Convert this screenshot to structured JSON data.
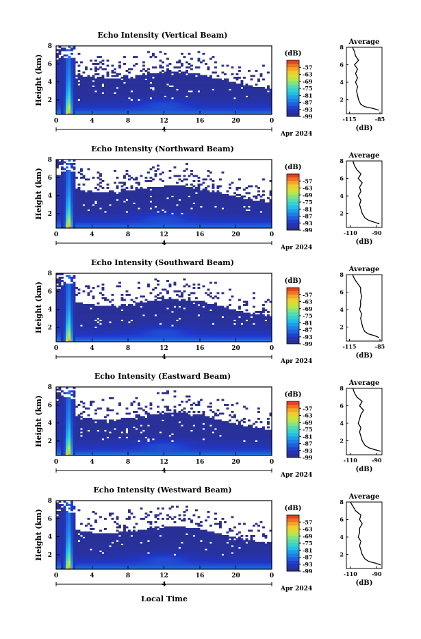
{
  "figure": {
    "date_label": "Apr 2024",
    "day_label": "4",
    "xlabel": "Local Time",
    "colorbar_unit": "(dB)",
    "profile_title": "Average",
    "profile_xlabel": "(dB)"
  },
  "chart_data": [
    {
      "type": "heatmap",
      "title": "Echo Intensity (Vertical Beam)",
      "xlabel": "Local Time",
      "ylabel": "Height (km)",
      "x_ticks": [
        "0",
        "4",
        "8",
        "12",
        "16",
        "20",
        "0"
      ],
      "xlim": [
        0,
        24
      ],
      "y_ticks": [
        "2",
        "4",
        "6",
        "8"
      ],
      "ylim": [
        0.4,
        8
      ],
      "colorbar": {
        "unit": "(dB)",
        "ticks": [
          "-57",
          "-63",
          "-69",
          "-75",
          "-81",
          "-87",
          "-93",
          "-99"
        ],
        "range": [
          -99,
          -51
        ]
      },
      "profile": {
        "title": "Average",
        "xlabel": "(dB)",
        "x_ticks": [
          "-115",
          "-85"
        ],
        "xlim": [
          -118,
          -83
        ],
        "heights": [
          0.8,
          1.0,
          1.2,
          1.5,
          2.0,
          2.5,
          3.0,
          3.5,
          4.0,
          4.5,
          5.0,
          5.5,
          6.0,
          6.5,
          7.0,
          7.5,
          8.0
        ],
        "values": [
          -86,
          -92,
          -100,
          -104,
          -106,
          -107,
          -108,
          -107,
          -109,
          -107,
          -109,
          -107,
          -110,
          -106,
          -109,
          -110,
          -112
        ]
      }
    },
    {
      "type": "heatmap",
      "title": "Echo Intensity (Northward Beam)",
      "xlabel": "Local Time",
      "ylabel": "Height (km)",
      "x_ticks": [
        "0",
        "4",
        "8",
        "12",
        "16",
        "20",
        "0"
      ],
      "xlim": [
        0,
        24
      ],
      "y_ticks": [
        "2",
        "4",
        "6",
        "8"
      ],
      "ylim": [
        0.4,
        8
      ],
      "colorbar": {
        "unit": "(dB)",
        "ticks": [
          "-57",
          "-63",
          "-69",
          "-75",
          "-81",
          "-87",
          "-93",
          "-99"
        ],
        "range": [
          -99,
          -51
        ]
      },
      "profile": {
        "title": "Average",
        "xlabel": "(dB)",
        "x_ticks": [
          "-110",
          "-90"
        ],
        "xlim": [
          -113,
          -86
        ],
        "heights": [
          0.8,
          1.0,
          1.2,
          1.5,
          2.0,
          2.5,
          3.0,
          3.5,
          4.0,
          4.5,
          5.0,
          5.5,
          6.0,
          6.5,
          7.0,
          7.5,
          8.0
        ],
        "values": [
          -88,
          -92,
          -96,
          -99,
          -101,
          -102,
          -103,
          -102,
          -104,
          -102,
          -103,
          -101,
          -104,
          -102,
          -105,
          -107,
          -108
        ]
      }
    },
    {
      "type": "heatmap",
      "title": "Echo Intensity (Southward Beam)",
      "xlabel": "Local Time",
      "ylabel": "Height (km)",
      "x_ticks": [
        "0",
        "4",
        "8",
        "12",
        "16",
        "20",
        "0"
      ],
      "xlim": [
        0,
        24
      ],
      "y_ticks": [
        "2",
        "4",
        "6",
        "8"
      ],
      "ylim": [
        0.4,
        8
      ],
      "colorbar": {
        "unit": "(dB)",
        "ticks": [
          "-57",
          "-63",
          "-69",
          "-75",
          "-81",
          "-87",
          "-93",
          "-99"
        ],
        "range": [
          -99,
          -51
        ]
      },
      "profile": {
        "title": "Average",
        "xlabel": "(dB)",
        "x_ticks": [
          "-115",
          "-85"
        ],
        "xlim": [
          -118,
          -83
        ],
        "heights": [
          0.8,
          1.0,
          1.2,
          1.5,
          2.0,
          2.5,
          3.0,
          3.5,
          4.0,
          4.5,
          5.0,
          5.5,
          6.0,
          6.5,
          7.0,
          7.5,
          8.0
        ],
        "values": [
          -86,
          -90,
          -96,
          -100,
          -102,
          -103,
          -104,
          -103,
          -105,
          -104,
          -104,
          -103,
          -104,
          -104,
          -107,
          -110,
          -112
        ]
      }
    },
    {
      "type": "heatmap",
      "title": "Echo Intensity (Eastward Beam)",
      "xlabel": "Local Time",
      "ylabel": "Height (km)",
      "x_ticks": [
        "0",
        "4",
        "8",
        "12",
        "16",
        "20",
        "0"
      ],
      "xlim": [
        0,
        24
      ],
      "y_ticks": [
        "2",
        "4",
        "6",
        "8"
      ],
      "ylim": [
        0.4,
        8
      ],
      "colorbar": {
        "unit": "(dB)",
        "ticks": [
          "-57",
          "-63",
          "-69",
          "-75",
          "-81",
          "-87",
          "-93",
          "-99"
        ],
        "range": [
          -99,
          -51
        ]
      },
      "profile": {
        "title": "Average",
        "xlabel": "(dB)",
        "x_ticks": [
          "-110",
          "-90"
        ],
        "xlim": [
          -113,
          -86
        ],
        "heights": [
          0.8,
          1.0,
          1.2,
          1.5,
          2.0,
          2.5,
          3.0,
          3.5,
          4.0,
          4.5,
          5.0,
          5.5,
          6.0,
          6.5,
          7.0,
          7.5,
          8.0
        ],
        "values": [
          -87,
          -92,
          -96,
          -99,
          -101,
          -102,
          -103,
          -102,
          -104,
          -103,
          -102,
          -100,
          -103,
          -101,
          -105,
          -107,
          -108
        ]
      }
    },
    {
      "type": "heatmap",
      "title": "Echo Intensity (Westward Beam)",
      "xlabel": "Local Time",
      "ylabel": "Height (km)",
      "x_ticks": [
        "0",
        "4",
        "8",
        "12",
        "16",
        "20",
        "0"
      ],
      "xlim": [
        0,
        24
      ],
      "y_ticks": [
        "2",
        "4",
        "6",
        "8"
      ],
      "ylim": [
        0.4,
        8
      ],
      "colorbar": {
        "unit": "(dB)",
        "ticks": [
          "-57",
          "-63",
          "-69",
          "-75",
          "-81",
          "-87",
          "-93",
          "-99"
        ],
        "range": [
          -99,
          -51
        ]
      },
      "profile": {
        "title": "Average",
        "xlabel": "(dB)",
        "x_ticks": [
          "-110",
          "-90"
        ],
        "xlim": [
          -113,
          -86
        ],
        "heights": [
          0.8,
          1.0,
          1.2,
          1.5,
          2.0,
          2.5,
          3.0,
          3.5,
          4.0,
          4.5,
          5.0,
          5.5,
          6.0,
          6.5,
          7.0,
          7.5,
          8.0
        ],
        "values": [
          -87,
          -91,
          -96,
          -99,
          -101,
          -102,
          -103,
          -102,
          -104,
          -103,
          -103,
          -101,
          -103,
          -102,
          -106,
          -108,
          -110
        ]
      }
    }
  ]
}
